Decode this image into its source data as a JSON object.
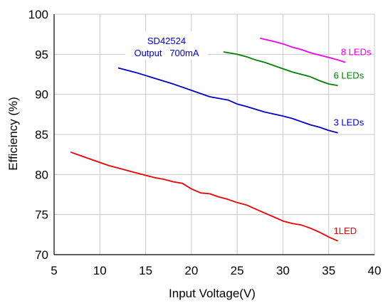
{
  "chart_data": {
    "type": "line",
    "xlabel": "Input Voltage(V)",
    "ylabel": "Efficiency (%)",
    "xlim": [
      5,
      40
    ],
    "ylim": [
      70,
      100
    ],
    "x_ticks": [
      5,
      10,
      15,
      20,
      25,
      30,
      35,
      40
    ],
    "y_ticks": [
      70,
      75,
      80,
      85,
      90,
      95,
      100
    ],
    "grid": true,
    "annotation": {
      "line1": "SD42524",
      "line2": "Output   700mA",
      "color": "#0000cc"
    },
    "series": [
      {
        "name": "1LED",
        "color": "#ee0000",
        "x": [
          6.8,
          8,
          9,
          10,
          11,
          12,
          13,
          14,
          15,
          16,
          17,
          18,
          19,
          20,
          21,
          22,
          23,
          24,
          25,
          26,
          27,
          28,
          29,
          30,
          31,
          32,
          33,
          34,
          35,
          36
        ],
        "y": [
          82.8,
          82.3,
          81.9,
          81.5,
          81.1,
          80.8,
          80.5,
          80.2,
          79.9,
          79.6,
          79.4,
          79.1,
          78.9,
          78.2,
          77.7,
          77.6,
          77.2,
          76.9,
          76.5,
          76.2,
          75.7,
          75.2,
          74.7,
          74.2,
          73.9,
          73.7,
          73.3,
          72.8,
          72.2,
          71.7
        ]
      },
      {
        "name": "3 LEDs",
        "color": "#0000cc",
        "x": [
          12,
          14,
          16,
          18,
          20,
          22,
          24,
          25,
          26,
          28,
          30,
          31,
          32,
          33,
          34,
          35,
          36
        ],
        "y": [
          93.3,
          92.7,
          92.0,
          91.3,
          90.5,
          89.7,
          89.3,
          88.8,
          88.5,
          87.8,
          87.3,
          87.0,
          86.6,
          86.2,
          85.9,
          85.5,
          85.2
        ]
      },
      {
        "name": "6 LEDs",
        "color": "#008000",
        "x": [
          23.5,
          25,
          26,
          27,
          28,
          29,
          30,
          31,
          32,
          33,
          34,
          35,
          36
        ],
        "y": [
          95.3,
          95.0,
          94.7,
          94.3,
          94.0,
          93.6,
          93.2,
          92.8,
          92.5,
          92.2,
          91.7,
          91.3,
          91.1
        ]
      },
      {
        "name": "8 LEDs",
        "color": "#ee00ee",
        "x": [
          27.5,
          29,
          30,
          31,
          32,
          33,
          34,
          35,
          36,
          36.8
        ],
        "y": [
          97.0,
          96.6,
          96.3,
          95.9,
          95.6,
          95.2,
          94.9,
          94.6,
          94.3,
          94.0
        ]
      }
    ]
  }
}
